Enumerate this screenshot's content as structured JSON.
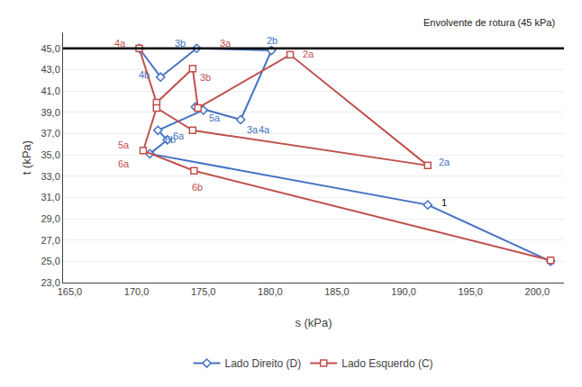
{
  "chart_data": {
    "type": "line",
    "xlabel": "s (kPa)",
    "ylabel": "t (kPa)",
    "xlim": [
      164.5,
      202.0
    ],
    "ylim": [
      23.0,
      46.5
    ],
    "xticks": [
      {
        "value": 165.0,
        "label": "165,0"
      },
      {
        "value": 170.0,
        "label": "170,0"
      },
      {
        "value": 175.0,
        "label": "175,0"
      },
      {
        "value": 180.0,
        "label": "180,0"
      },
      {
        "value": 185.0,
        "label": "185,0"
      },
      {
        "value": 190.0,
        "label": "190,0"
      },
      {
        "value": 195.0,
        "label": "195,0"
      },
      {
        "value": 200.0,
        "label": "200,0"
      }
    ],
    "yticks": [
      {
        "value": 23.0,
        "label": "23,0"
      },
      {
        "value": 25.0,
        "label": "25,0"
      },
      {
        "value": 27.0,
        "label": "27,0"
      },
      {
        "value": 29.0,
        "label": "29,0"
      },
      {
        "value": 31.0,
        "label": "31,0"
      },
      {
        "value": 33.0,
        "label": "33,0"
      },
      {
        "value": 35.0,
        "label": "35,0"
      },
      {
        "value": 37.0,
        "label": "37,0"
      },
      {
        "value": 39.0,
        "label": "39,0"
      },
      {
        "value": 41.0,
        "label": "41,0"
      },
      {
        "value": 43.0,
        "label": "43,0"
      },
      {
        "value": 45.0,
        "label": "45,0"
      }
    ],
    "grid": "y",
    "legend": "bottom",
    "series": [
      {
        "name": "Lado Direito (D)",
        "color": "#4472C4",
        "marker": "diamond",
        "line_style": "solid",
        "x": [
          170.2,
          171.8,
          174.5,
          180.1,
          177.8,
          174.4,
          175.0,
          171.6,
          172.3,
          171.0,
          191.8,
          201.0
        ],
        "values": [
          45.0,
          42.3,
          45.0,
          44.8,
          38.3,
          39.5,
          39.2,
          37.3,
          36.4,
          35.1,
          30.3,
          25.0
        ]
      },
      {
        "name": "Lado Esquerdo (C)",
        "color": "#C0504D",
        "marker": "square",
        "line_style": "solid",
        "x": [
          170.2,
          171.5,
          174.2,
          174.6,
          181.5,
          191.8,
          174.2,
          171.5,
          170.5,
          174.3,
          201.0
        ],
        "values": [
          45.0,
          39.9,
          43.1,
          39.4,
          44.4,
          34.0,
          37.3,
          39.4,
          35.4,
          33.5,
          25.1
        ]
      }
    ],
    "reference_lines": [
      {
        "y": 45.0,
        "label": "Envolvente de rotura (45 kPa)",
        "color": "black"
      }
    ],
    "annotations": [
      {
        "text": "2b",
        "x": 179.6,
        "y": 45.7,
        "color": "#4472C4"
      },
      {
        "text": "3a",
        "x": 178.1,
        "y": 37.4,
        "color": "#4472C4"
      },
      {
        "text": "3b",
        "x": 172.7,
        "y": 45.5,
        "color": "#4472C4"
      },
      {
        "text": "4a",
        "x": 179.0,
        "y": 37.4,
        "color": "#4472C4"
      },
      {
        "text": "4b",
        "x": 170.0,
        "y": 42.5,
        "color": "#4472C4"
      },
      {
        "text": "5a",
        "x": 175.3,
        "y": 38.5,
        "color": "#4472C4"
      },
      {
        "text": "6a",
        "x": 172.6,
        "y": 36.8,
        "color": "#4472C4"
      },
      {
        "text": "6b",
        "x": 172.0,
        "y": 36.4,
        "color": "#4472C4"
      },
      {
        "text": "1",
        "x": 192.7,
        "y": 30.5,
        "color": "black"
      },
      {
        "text": "2a",
        "x": 192.5,
        "y": 34.3,
        "color": "#4472C4"
      },
      {
        "text": "4a",
        "x": 168.2,
        "y": 45.5,
        "color": "#C0504D"
      },
      {
        "text": "5a",
        "x": 168.5,
        "y": 35.9,
        "color": "#C0504D"
      },
      {
        "text": "6a",
        "x": 168.5,
        "y": 34.2,
        "color": "#C0504D"
      },
      {
        "text": "3b",
        "x": 174.6,
        "y": 42.3,
        "color": "#C0504D"
      },
      {
        "text": "3a",
        "x": 176.1,
        "y": 45.5,
        "color": "#C0504D"
      },
      {
        "text": "6b",
        "x": 174.0,
        "y": 32.0,
        "color": "#C0504D"
      },
      {
        "text": "2a",
        "x": 182.3,
        "y": 44.5,
        "color": "#C0504D"
      }
    ]
  }
}
